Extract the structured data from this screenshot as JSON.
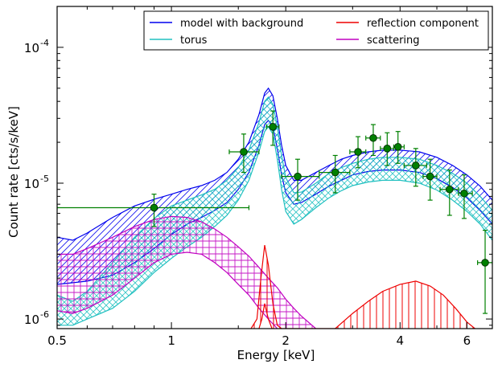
{
  "chart_data": {
    "type": "line",
    "xlabel": "Energy [keV]",
    "ylabel": "Count rate [cts/s/keV]",
    "x_scale": "log",
    "y_scale": "log",
    "xlim": [
      0.5,
      7.0
    ],
    "ylim": [
      8.5e-07,
      0.0002
    ],
    "x_ticks": [
      {
        "value": 0.5,
        "label": "0.5"
      },
      {
        "value": 1,
        "label": "1"
      },
      {
        "value": 2,
        "label": "2"
      },
      {
        "value": 4,
        "label": "4"
      },
      {
        "value": 6,
        "label": "6"
      }
    ],
    "y_ticks": [
      {
        "value": 1e-06,
        "base": "10",
        "exp": "-6"
      },
      {
        "value": 1e-05,
        "base": "10",
        "exp": "-5"
      },
      {
        "value": 0.0001,
        "base": "10",
        "exp": "-4"
      }
    ],
    "legend": {
      "placement": "top-right",
      "columns": 2,
      "entries": [
        {
          "label": "model with background",
          "color": "#0000ee"
        },
        {
          "label": "torus",
          "color": "#20c0c0"
        },
        {
          "label": "reflection component",
          "color": "#ee0000"
        },
        {
          "label": "scattering",
          "color": "#c000c0"
        }
      ]
    },
    "series": [
      {
        "name": "model with background",
        "color": "#0000ee",
        "hatch": "diagonal",
        "upper": [
          [
            0.5,
            4e-06
          ],
          [
            0.55,
            3.8e-06
          ],
          [
            0.6,
            4.3e-06
          ],
          [
            0.7,
            5.6e-06
          ],
          [
            0.8,
            6.8e-06
          ],
          [
            0.9,
            7.6e-06
          ],
          [
            1.0,
            8.3e-06
          ],
          [
            1.1,
            9e-06
          ],
          [
            1.2,
            9.6e-06
          ],
          [
            1.3,
            1.05e-05
          ],
          [
            1.4,
            1.2e-05
          ],
          [
            1.5,
            1.5e-05
          ],
          [
            1.6,
            2e-05
          ],
          [
            1.7,
            3.2e-05
          ],
          [
            1.76,
            4.6e-05
          ],
          [
            1.8,
            5e-05
          ],
          [
            1.85,
            4.4e-05
          ],
          [
            1.9,
            3e-05
          ],
          [
            1.95,
            1.9e-05
          ],
          [
            2.0,
            1.35e-05
          ],
          [
            2.1,
            1.05e-05
          ],
          [
            2.2,
            1.05e-05
          ],
          [
            2.4,
            1.2e-05
          ],
          [
            2.6,
            1.35e-05
          ],
          [
            2.8,
            1.5e-05
          ],
          [
            3.0,
            1.6e-05
          ],
          [
            3.3,
            1.7e-05
          ],
          [
            3.6,
            1.75e-05
          ],
          [
            4.0,
            1.75e-05
          ],
          [
            4.5,
            1.7e-05
          ],
          [
            5.0,
            1.55e-05
          ],
          [
            5.5,
            1.35e-05
          ],
          [
            6.0,
            1.15e-05
          ],
          [
            6.5,
            9.5e-06
          ],
          [
            7.0,
            7.5e-06
          ]
        ],
        "lower": [
          [
            0.5,
            1.8e-06
          ],
          [
            0.55,
            1.85e-06
          ],
          [
            0.6,
            1.9e-06
          ],
          [
            0.7,
            2.1e-06
          ],
          [
            0.8,
            2.6e-06
          ],
          [
            0.9,
            3.3e-06
          ],
          [
            1.0,
            4.2e-06
          ],
          [
            1.1,
            5e-06
          ],
          [
            1.2,
            5.6e-06
          ],
          [
            1.3,
            6.3e-06
          ],
          [
            1.4,
            7.2e-06
          ],
          [
            1.5,
            9e-06
          ],
          [
            1.6,
            1.2e-05
          ],
          [
            1.7,
            1.9e-05
          ],
          [
            1.76,
            2.7e-05
          ],
          [
            1.8,
            2.9e-05
          ],
          [
            1.85,
            2.6e-05
          ],
          [
            1.9,
            1.8e-05
          ],
          [
            1.95,
            1.15e-05
          ],
          [
            2.0,
            8.5e-06
          ],
          [
            2.1,
            7e-06
          ],
          [
            2.2,
            7.2e-06
          ],
          [
            2.4,
            8.3e-06
          ],
          [
            2.6,
            9.5e-06
          ],
          [
            2.8,
            1.05e-05
          ],
          [
            3.0,
            1.15e-05
          ],
          [
            3.3,
            1.22e-05
          ],
          [
            3.6,
            1.25e-05
          ],
          [
            4.0,
            1.25e-05
          ],
          [
            4.5,
            1.2e-05
          ],
          [
            5.0,
            1.08e-05
          ],
          [
            5.5,
            9.3e-06
          ],
          [
            6.0,
            7.8e-06
          ],
          [
            6.5,
            6.3e-06
          ],
          [
            7.0,
            5e-06
          ]
        ]
      },
      {
        "name": "torus",
        "color": "#20c0c0",
        "hatch": "cross",
        "upper": [
          [
            0.5,
            1.5e-06
          ],
          [
            0.55,
            1.35e-06
          ],
          [
            0.6,
            1.6e-06
          ],
          [
            0.7,
            2.6e-06
          ],
          [
            0.8,
            4e-06
          ],
          [
            0.9,
            5.5e-06
          ],
          [
            1.0,
            6.8e-06
          ],
          [
            1.1,
            7.5e-06
          ],
          [
            1.2,
            8.2e-06
          ],
          [
            1.3,
            9e-06
          ],
          [
            1.4,
            1.05e-05
          ],
          [
            1.5,
            1.3e-05
          ],
          [
            1.6,
            1.75e-05
          ],
          [
            1.7,
            2.8e-05
          ],
          [
            1.76,
            4e-05
          ],
          [
            1.8,
            4.3e-05
          ],
          [
            1.85,
            3.8e-05
          ],
          [
            1.9,
            2.6e-05
          ],
          [
            1.95,
            1.6e-05
          ],
          [
            2.0,
            1.1e-05
          ],
          [
            2.1,
            8.5e-06
          ],
          [
            2.2,
            8.6e-06
          ],
          [
            2.4,
            1e-05
          ],
          [
            2.6,
            1.18e-05
          ],
          [
            2.8,
            1.3e-05
          ],
          [
            3.0,
            1.4e-05
          ],
          [
            3.3,
            1.5e-05
          ],
          [
            3.6,
            1.55e-05
          ],
          [
            4.0,
            1.55e-05
          ],
          [
            4.5,
            1.5e-05
          ],
          [
            5.0,
            1.35e-05
          ],
          [
            5.5,
            1.18e-05
          ],
          [
            6.0,
            1e-05
          ],
          [
            6.5,
            8e-06
          ],
          [
            7.0,
            6.3e-06
          ]
        ],
        "lower": [
          [
            0.5,
            9e-07
          ],
          [
            0.55,
            9e-07
          ],
          [
            0.6,
            1e-06
          ],
          [
            0.7,
            1.2e-06
          ],
          [
            0.8,
            1.6e-06
          ],
          [
            0.9,
            2.2e-06
          ],
          [
            1.0,
            2.8e-06
          ],
          [
            1.1,
            3.4e-06
          ],
          [
            1.2,
            4e-06
          ],
          [
            1.3,
            4.8e-06
          ],
          [
            1.4,
            5.8e-06
          ],
          [
            1.5,
            7.5e-06
          ],
          [
            1.6,
            1.05e-05
          ],
          [
            1.7,
            1.7e-05
          ],
          [
            1.76,
            2.4e-05
          ],
          [
            1.8,
            2.6e-05
          ],
          [
            1.85,
            2.3e-05
          ],
          [
            1.9,
            1.5e-05
          ],
          [
            1.95,
            9e-06
          ],
          [
            2.0,
            6.2e-06
          ],
          [
            2.1,
            5e-06
          ],
          [
            2.2,
            5.4e-06
          ],
          [
            2.4,
            6.6e-06
          ],
          [
            2.6,
            7.8e-06
          ],
          [
            2.8,
            8.8e-06
          ],
          [
            3.0,
            9.6e-06
          ],
          [
            3.3,
            1.02e-05
          ],
          [
            3.6,
            1.05e-05
          ],
          [
            4.0,
            1.05e-05
          ],
          [
            4.5,
            1e-05
          ],
          [
            5.0,
            8.9e-06
          ],
          [
            5.5,
            7.5e-06
          ],
          [
            6.0,
            6.2e-06
          ],
          [
            6.5,
            5e-06
          ],
          [
            7.0,
            3.8e-06
          ]
        ]
      },
      {
        "name": "scattering",
        "color": "#c000c0",
        "hatch": "grid",
        "upper": [
          [
            0.5,
            3e-06
          ],
          [
            0.55,
            3e-06
          ],
          [
            0.6,
            3.3e-06
          ],
          [
            0.7,
            4e-06
          ],
          [
            0.8,
            4.8e-06
          ],
          [
            0.9,
            5.4e-06
          ],
          [
            1.0,
            5.7e-06
          ],
          [
            1.1,
            5.6e-06
          ],
          [
            1.2,
            5.2e-06
          ],
          [
            1.3,
            4.6e-06
          ],
          [
            1.4,
            4e-06
          ],
          [
            1.5,
            3.4e-06
          ],
          [
            1.6,
            2.9e-06
          ],
          [
            1.7,
            2.4e-06
          ],
          [
            1.8,
            2e-06
          ],
          [
            1.9,
            1.7e-06
          ],
          [
            2.0,
            1.4e-06
          ],
          [
            2.1,
            1.2e-06
          ],
          [
            2.2,
            1.05e-06
          ],
          [
            2.4,
            8.5e-07
          ]
        ],
        "lower": [
          [
            0.5,
            1.15e-06
          ],
          [
            0.55,
            1.1e-06
          ],
          [
            0.6,
            1.2e-06
          ],
          [
            0.7,
            1.5e-06
          ],
          [
            0.8,
            2e-06
          ],
          [
            0.9,
            2.6e-06
          ],
          [
            1.0,
            3e-06
          ],
          [
            1.1,
            3.1e-06
          ],
          [
            1.2,
            3e-06
          ],
          [
            1.3,
            2.6e-06
          ],
          [
            1.4,
            2.2e-06
          ],
          [
            1.5,
            1.8e-06
          ],
          [
            1.6,
            1.5e-06
          ],
          [
            1.7,
            1.2e-06
          ],
          [
            1.8,
            1e-06
          ],
          [
            1.9,
            8.5e-07
          ]
        ]
      },
      {
        "name": "reflection component",
        "color": "#ee0000",
        "hatch": "vertical",
        "upper": [
          [
            1.62,
            8.5e-07
          ],
          [
            1.68,
            1e-06
          ],
          [
            1.72,
            2e-06
          ],
          [
            1.76,
            3.5e-06
          ],
          [
            1.8,
            2.5e-06
          ],
          [
            1.85,
            1.3e-06
          ],
          [
            1.9,
            9e-07
          ],
          [
            1.95,
            8.5e-07
          ],
          [
            2.7,
            8.5e-07
          ],
          [
            3.0,
            1.1e-06
          ],
          [
            3.3,
            1.35e-06
          ],
          [
            3.6,
            1.6e-06
          ],
          [
            4.0,
            1.8e-06
          ],
          [
            4.4,
            1.9e-06
          ],
          [
            4.8,
            1.75e-06
          ],
          [
            5.2,
            1.5e-06
          ],
          [
            5.6,
            1.2e-06
          ],
          [
            6.0,
            9.5e-07
          ],
          [
            6.3,
            8.5e-07
          ]
        ],
        "lower": [
          [
            1.7,
            8.5e-07
          ],
          [
            1.73,
            1e-06
          ],
          [
            1.76,
            1.3e-06
          ],
          [
            1.8,
            1e-06
          ],
          [
            1.84,
            8.5e-07
          ]
        ]
      }
    ],
    "data_points": {
      "color": "#008000",
      "points": [
        {
          "x": 0.9,
          "y": 6.6e-06,
          "xerr": [
            0.5,
            1.6
          ],
          "yerr": [
            4.8e-06,
            8.3e-06
          ]
        },
        {
          "x": 1.55,
          "y": 1.7e-05,
          "xerr": [
            1.42,
            1.7
          ],
          "yerr": [
            1.2e-05,
            2.3e-05
          ]
        },
        {
          "x": 1.85,
          "y": 2.6e-05,
          "xerr": [
            1.78,
            1.92
          ],
          "yerr": [
            1.9e-05,
            3.4e-05
          ]
        },
        {
          "x": 2.15,
          "y": 1.12e-05,
          "xerr": [
            1.95,
            2.45
          ],
          "yerr": [
            7.5e-06,
            1.5e-05
          ]
        },
        {
          "x": 2.7,
          "y": 1.2e-05,
          "xerr": [
            2.45,
            2.95
          ],
          "yerr": [
            8.5e-06,
            1.6e-05
          ]
        },
        {
          "x": 3.1,
          "y": 1.7e-05,
          "xerr": [
            2.95,
            3.25
          ],
          "yerr": [
            1.3e-05,
            2.2e-05
          ]
        },
        {
          "x": 3.4,
          "y": 2.15e-05,
          "xerr": [
            3.25,
            3.55
          ],
          "yerr": [
            1.6e-05,
            2.7e-05
          ]
        },
        {
          "x": 3.7,
          "y": 1.8e-05,
          "xerr": [
            3.55,
            3.85
          ],
          "yerr": [
            1.35e-05,
            2.35e-05
          ]
        },
        {
          "x": 3.95,
          "y": 1.85e-05,
          "xerr": [
            3.85,
            4.1
          ],
          "yerr": [
            1.4e-05,
            2.4e-05
          ]
        },
        {
          "x": 4.4,
          "y": 1.35e-05,
          "xerr": [
            4.1,
            4.7
          ],
          "yerr": [
            9.5e-06,
            1.8e-05
          ]
        },
        {
          "x": 4.8,
          "y": 1.12e-05,
          "xerr": [
            4.6,
            5.0
          ],
          "yerr": [
            7.5e-06,
            1.5e-05
          ]
        },
        {
          "x": 5.4,
          "y": 9e-06,
          "xerr": [
            5.1,
            5.7
          ],
          "yerr": [
            5.8e-06,
            1.25e-05
          ]
        },
        {
          "x": 5.9,
          "y": 8.4e-06,
          "xerr": [
            5.7,
            6.2
          ],
          "yerr": [
            5.5e-06,
            1.15e-05
          ]
        },
        {
          "x": 6.7,
          "y": 2.6e-06,
          "xerr": [
            6.4,
            7.0
          ],
          "yerr": [
            1.1e-06,
            4.5e-06
          ]
        }
      ]
    }
  }
}
